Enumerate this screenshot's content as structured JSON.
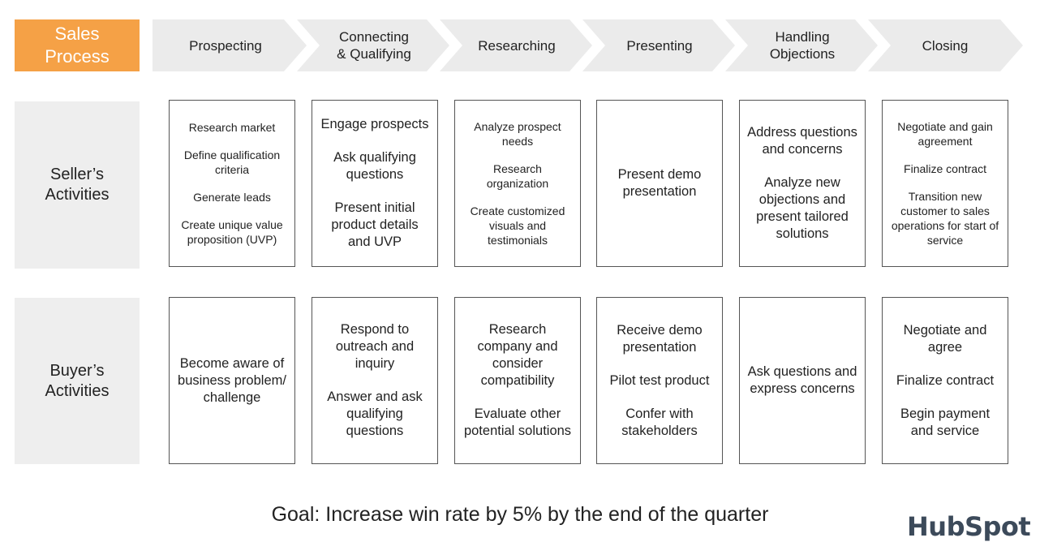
{
  "header": {
    "title": "Sales\nProcess",
    "stages": [
      "Prospecting",
      "Connecting\n& Qualifying",
      "Researching",
      "Presenting",
      "Handling\nObjections",
      "Closing"
    ]
  },
  "rows": {
    "seller_label": "Seller’s\nActivities",
    "buyer_label": "Buyer’s\nActivities"
  },
  "seller": [
    [
      "Research market",
      "Define qualification criteria",
      "Generate leads",
      "Create unique value proposition (UVP)"
    ],
    [
      "Engage prospects",
      "Ask qualifying questions",
      "Present initial product details and UVP"
    ],
    [
      "Analyze prospect needs",
      "Research organization",
      "Create customized visuals and testimonials"
    ],
    [
      "Present demo presentation"
    ],
    [
      "Address questions and concerns",
      "Analyze new objections and present tailored solutions"
    ],
    [
      "Negotiate and gain agreement",
      "Finalize contract",
      "Transition new customer to sales operations for start of service"
    ]
  ],
  "buyer": [
    [
      "Become aware of business problem/ challenge"
    ],
    [
      "Respond to outreach and inquiry",
      "Answer and ask qualifying questions"
    ],
    [
      "Research company and consider compatibility",
      "Evaluate other potential solutions"
    ],
    [
      "Receive demo presentation",
      "Pilot test product",
      "Confer with stakeholders"
    ],
    [
      "Ask questions and express concerns"
    ],
    [
      "Negotiate and agree",
      "Finalize contract",
      "Begin payment and service"
    ]
  ],
  "goal": "Goal: Increase win rate by 5% by the end of the quarter",
  "logo": "HubSpot",
  "colors": {
    "accent": "#f5a146",
    "chevron": "#ebebeb",
    "row_label_bg": "#eeeeee"
  }
}
